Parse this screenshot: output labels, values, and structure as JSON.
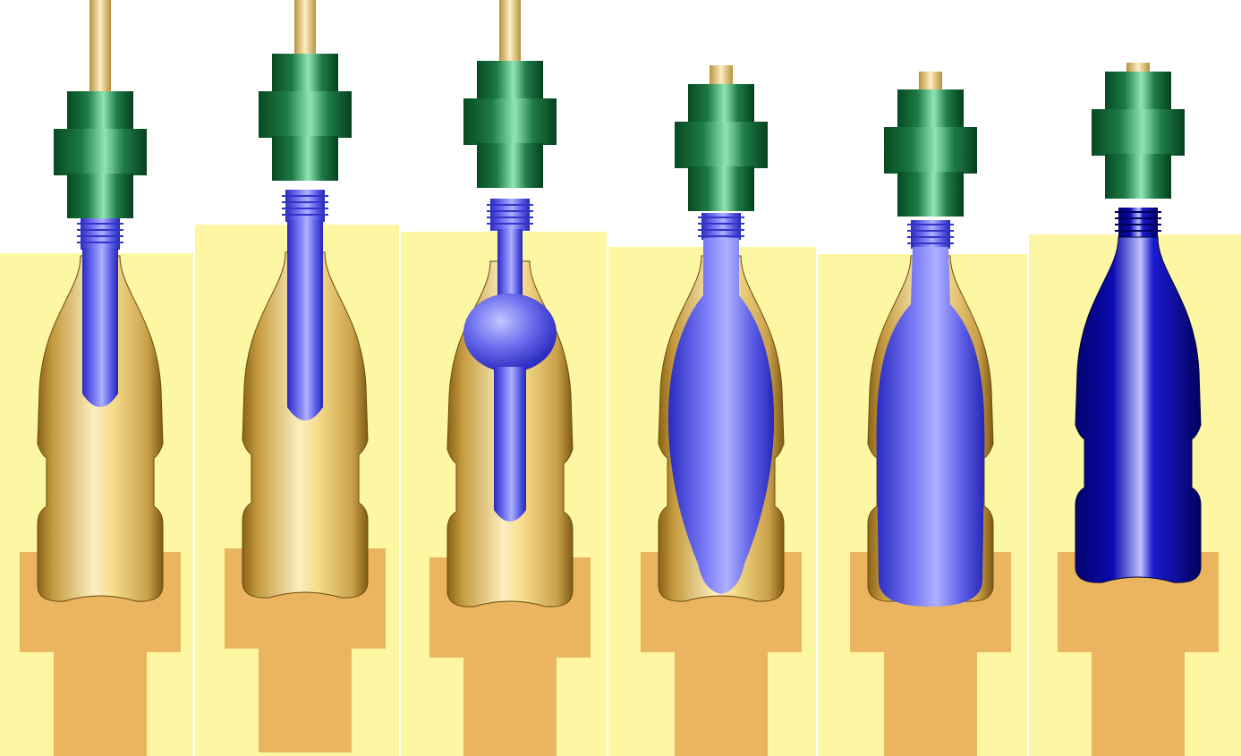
{
  "colors": {
    "background": "#ffffff",
    "mold_field": "#fdf7a4",
    "mold_base": "#ebb45e",
    "mold_body_dark": "#b88e35",
    "mold_body_light": "#fbeab0",
    "rod_dark": "#c6a45a",
    "rod_light": "#fbe8b6",
    "nozzle_dark": "#0d5a2d",
    "nozzle_light": "#7fe0a8",
    "preform_dark": "#3a3ad6",
    "preform_light": "#a8aaff",
    "bottle_final_dark": "#05058a",
    "bottle_final_light": "#c8c8ff"
  },
  "stages": [
    {
      "name": "stage-1",
      "preform": "initial-preform",
      "rod_visible": true
    },
    {
      "name": "stage-2",
      "preform": "stretched-preform",
      "rod_visible": true
    },
    {
      "name": "stage-3",
      "preform": "ball-bubble",
      "rod_visible": true
    },
    {
      "name": "stage-4",
      "preform": "spindle-bubble",
      "rod_visible": false
    },
    {
      "name": "stage-5",
      "preform": "near-full-bottle",
      "rod_visible": false
    },
    {
      "name": "stage-6",
      "preform": "final-bottle",
      "rod_visible": false
    }
  ]
}
